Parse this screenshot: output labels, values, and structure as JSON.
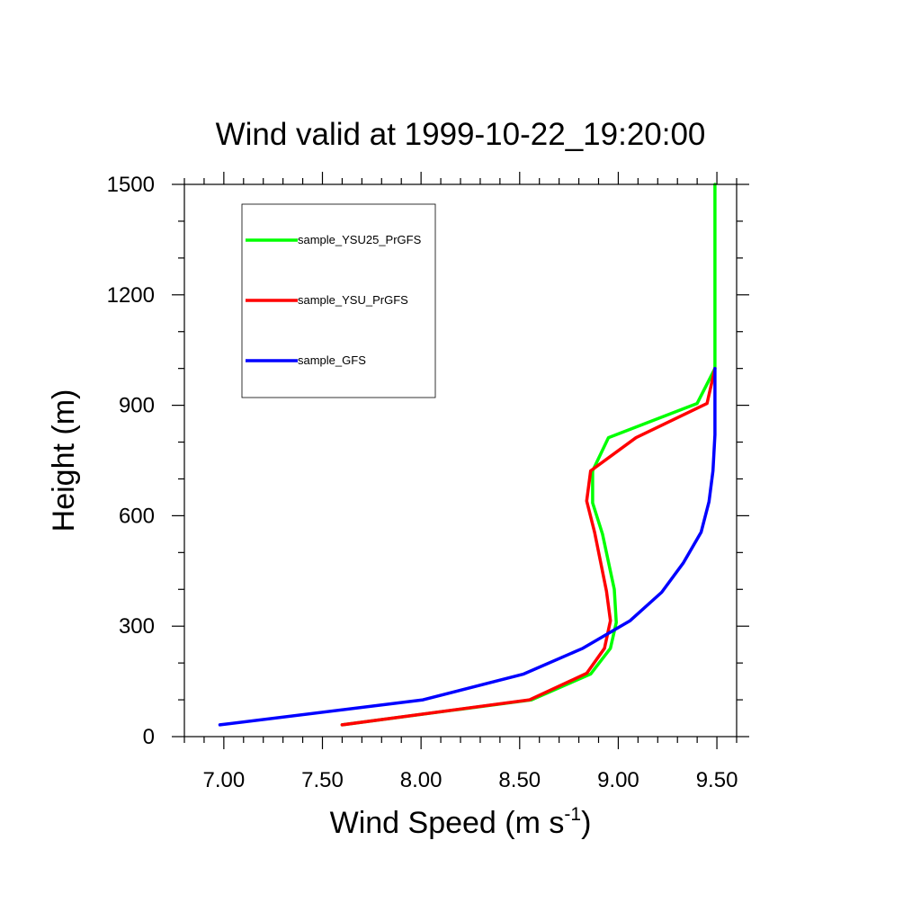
{
  "chart_data": {
    "type": "line",
    "title": "Wind valid at 1999-10-22_19:20:00",
    "xlabel": {
      "base": "Wind Speed (m s",
      "superscript": "-1",
      "suffix": ")"
    },
    "ylabel": "Height (m)",
    "xlim": [
      6.8,
      9.6
    ],
    "ylim": [
      0,
      1500
    ],
    "xticks": [
      7.0,
      7.5,
      8.0,
      8.5,
      9.0,
      9.5
    ],
    "xtick_labels": [
      "7.00",
      "7.50",
      "8.00",
      "8.50",
      "9.00",
      "9.50"
    ],
    "yticks": [
      0,
      300,
      600,
      900,
      1200,
      1500
    ],
    "ytick_labels": [
      "0",
      "300",
      "600",
      "900",
      "1200",
      "1500"
    ],
    "grid": false,
    "legend_position": "top-left",
    "series": [
      {
        "name": "sample_YSU25_PrGFS",
        "color": "#00ff00",
        "points": [
          [
            7.6,
            32
          ],
          [
            8.56,
            100
          ],
          [
            8.86,
            170
          ],
          [
            8.96,
            240
          ],
          [
            8.99,
            310
          ],
          [
            8.98,
            400
          ],
          [
            8.92,
            550
          ],
          [
            8.87,
            635
          ],
          [
            8.87,
            722
          ],
          [
            8.95,
            812
          ],
          [
            9.4,
            905
          ],
          [
            9.49,
            1000
          ],
          [
            9.49,
            1500
          ]
        ]
      },
      {
        "name": "sample_YSU_PrGFS",
        "color": "#ff0000",
        "points": [
          [
            7.6,
            32
          ],
          [
            8.55,
            100
          ],
          [
            8.84,
            172
          ],
          [
            8.93,
            240
          ],
          [
            8.96,
            315
          ],
          [
            8.94,
            395
          ],
          [
            8.88,
            555
          ],
          [
            8.84,
            640
          ],
          [
            8.86,
            722
          ],
          [
            9.09,
            812
          ],
          [
            9.45,
            905
          ],
          [
            9.49,
            1000
          ]
        ]
      },
      {
        "name": "sample_GFS",
        "color": "#0000ff",
        "points": [
          [
            6.98,
            32
          ],
          [
            8.01,
            100
          ],
          [
            8.52,
            170
          ],
          [
            8.82,
            240
          ],
          [
            9.06,
            315
          ],
          [
            9.22,
            392
          ],
          [
            9.33,
            472
          ],
          [
            9.42,
            555
          ],
          [
            9.46,
            638
          ],
          [
            9.48,
            722
          ],
          [
            9.49,
            820
          ],
          [
            9.49,
            1000
          ]
        ]
      }
    ]
  }
}
